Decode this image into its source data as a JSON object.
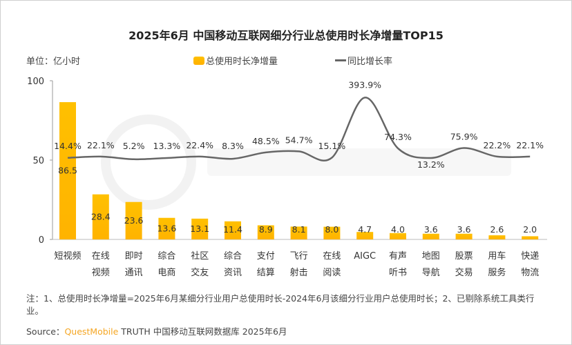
{
  "chart_data": {
    "type": "bar+line",
    "title": "2025年6月 中国移动互联网细分行业总使用时长净增量TOP15",
    "unit_label": "单位：亿小时",
    "categories": [
      "短视频",
      "在线视频",
      "即时通讯",
      "综合电商",
      "社区交友",
      "综合资讯",
      "支付结算",
      "飞行射击",
      "在线阅读",
      "AIGC",
      "有声听书",
      "地图导航",
      "股票交易",
      "用车服务",
      "快递物流"
    ],
    "category_lines": [
      [
        "短视频"
      ],
      [
        "在线",
        "视频"
      ],
      [
        "即时",
        "通讯"
      ],
      [
        "综合",
        "电商"
      ],
      [
        "社区",
        "交友"
      ],
      [
        "综合",
        "资讯"
      ],
      [
        "支付",
        "结算"
      ],
      [
        "飞行",
        "射击"
      ],
      [
        "在线",
        "阅读"
      ],
      [
        "AIGC"
      ],
      [
        "有声",
        "听书"
      ],
      [
        "地图",
        "导航"
      ],
      [
        "股票",
        "交易"
      ],
      [
        "用车",
        "服务"
      ],
      [
        "快递",
        "物流"
      ]
    ],
    "series": [
      {
        "name": "总使用时长净增量",
        "type": "bar",
        "axis": "left",
        "values": [
          86.5,
          28.4,
          23.6,
          13.6,
          13.1,
          11.4,
          8.9,
          8.1,
          8.0,
          4.7,
          4.0,
          3.6,
          3.6,
          2.6,
          2.0
        ],
        "labels": [
          "86.5",
          "28.4",
          "23.6",
          "13.6",
          "13.1",
          "11.4",
          "8.9",
          "8.1",
          "8.0",
          "4.7",
          "4.0",
          "3.6",
          "3.6",
          "2.6",
          "2.0"
        ],
        "color": "#ffc000"
      },
      {
        "name": "同比增长率",
        "type": "line",
        "axis": "right-hidden",
        "values": [
          14.4,
          22.1,
          5.2,
          13.3,
          22.4,
          8.3,
          48.5,
          54.7,
          15.1,
          393.9,
          74.3,
          13.2,
          75.9,
          22.2,
          22.1
        ],
        "labels": [
          "14.4%",
          "22.1%",
          "5.2%",
          "13.3%",
          "22.4%",
          "8.3%",
          "48.5%",
          "54.7%",
          "15.1%",
          "393.9%",
          "74.3%",
          "13.2%",
          "75.9%",
          "22.2%",
          "22.1%"
        ],
        "color": "#666666"
      }
    ],
    "y_left": {
      "range": [
        0,
        100
      ],
      "ticks": [
        "0",
        "50",
        "100"
      ]
    },
    "y_right_range": [
      -500,
      500
    ],
    "grid": false,
    "legend_placement": "top-center"
  },
  "watermark": "QUEST MOBILE",
  "note": "注：1、总使用时长净增量=2025年6月某细分行业用户总使用时长-2024年6月该细分行业用户总使用时长；2、已剔除系统工具类行业。",
  "source": {
    "prefix": "Source：",
    "brand": "QuestMobile",
    "rest": " TRUTH 中国移动互联网数据库 2025年6月"
  }
}
